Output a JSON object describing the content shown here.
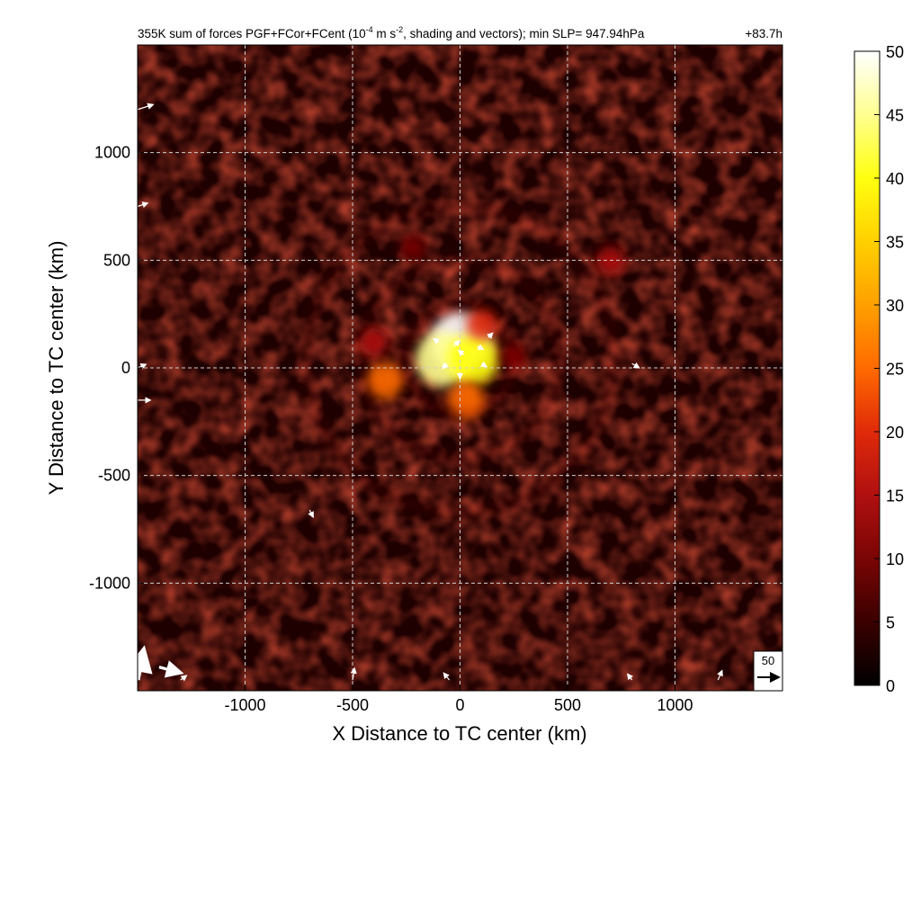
{
  "chart_data": [
    {
      "type": "heatmap",
      "title": "355K sum of forces PGF+FCor+FCent (10",
      "title_exp": "-4",
      "title_mid": " m s",
      "title_exp2": "-2",
      "title_tail": ", shading and vectors); min SLP= 947.94hPa",
      "time_label": "+83.7h",
      "xlabel": "X Distance to TC center (km)",
      "ylabel": "Y Distance to TC center (km)",
      "xlim": [
        -1500,
        1500
      ],
      "ylim": [
        -1500,
        1500
      ],
      "xticks": [
        -1000,
        -500,
        0,
        500,
        1000
      ],
      "yticks": [
        -1000,
        -500,
        0,
        500,
        1000
      ],
      "grid": true,
      "colorbar": {
        "min": 0,
        "max": 50,
        "ticks": [
          0,
          5,
          10,
          15,
          20,
          25,
          30,
          35,
          40,
          45,
          50
        ],
        "colormap": [
          "#000000",
          "#3a0000",
          "#7a0505",
          "#b01010",
          "#e02a0a",
          "#ff6a00",
          "#ffa000",
          "#ffd000",
          "#ffff10",
          "#ffff90",
          "#ffffff"
        ]
      },
      "reference_vector": {
        "value": "50"
      },
      "features": [
        {
          "x": 0,
          "y": 120,
          "value": 50
        },
        {
          "x": -80,
          "y": 40,
          "value": 45
        },
        {
          "x": 60,
          "y": 40,
          "value": 40
        },
        {
          "x": 30,
          "y": -150,
          "value": 25
        },
        {
          "x": -350,
          "y": -60,
          "value": 25
        },
        {
          "x": 100,
          "y": 200,
          "value": 18
        },
        {
          "x": -400,
          "y": 120,
          "value": 15
        },
        {
          "x": 700,
          "y": 500,
          "value": 15
        },
        {
          "x": -220,
          "y": 560,
          "value": 12
        },
        {
          "x": 250,
          "y": 50,
          "value": 12
        }
      ],
      "vectors": [
        {
          "x": -1500,
          "y": -1450,
          "u": 8,
          "v": 40,
          "mag": 60
        },
        {
          "x": -1400,
          "y": -1390,
          "u": 30,
          "v": -8,
          "mag": 40
        },
        {
          "x": -1500,
          "y": 1200,
          "u": 25,
          "v": 8,
          "mag": 15
        },
        {
          "x": -1500,
          "y": -150,
          "u": 20,
          "v": 0,
          "mag": 12
        },
        {
          "x": -1500,
          "y": 750,
          "u": 15,
          "v": 5,
          "mag": 8
        },
        {
          "x": -1500,
          "y": 0,
          "u": 12,
          "v": 5,
          "mag": 6
        },
        {
          "x": -700,
          "y": -660,
          "u": 5,
          "v": -10,
          "mag": 7
        },
        {
          "x": 800,
          "y": 20,
          "u": 10,
          "v": -6,
          "mag": 6
        },
        {
          "x": -500,
          "y": -1450,
          "u": 3,
          "v": 18,
          "mag": 10
        },
        {
          "x": -30,
          "y": 100,
          "u": 8,
          "v": 8,
          "mag": 8
        },
        {
          "x": 20,
          "y": 60,
          "u": -8,
          "v": 6,
          "mag": 8
        },
        {
          "x": 80,
          "y": 100,
          "u": 8,
          "v": -4,
          "mag": 7
        },
        {
          "x": -60,
          "y": 20,
          "u": -6,
          "v": -6,
          "mag": 6
        },
        {
          "x": 100,
          "y": 20,
          "u": 6,
          "v": -4,
          "mag": 6
        },
        {
          "x": 0,
          "y": -20,
          "u": 0,
          "v": -8,
          "mag": 6
        },
        {
          "x": 130,
          "y": 140,
          "u": 6,
          "v": 6,
          "mag": 5
        },
        {
          "x": -100,
          "y": 120,
          "u": -6,
          "v": 4,
          "mag": 5
        },
        {
          "x": 1200,
          "y": -1450,
          "u": 6,
          "v": 14,
          "mag": 8
        },
        {
          "x": -50,
          "y": -1450,
          "u": -8,
          "v": 10,
          "mag": 7
        },
        {
          "x": 800,
          "y": -1450,
          "u": -6,
          "v": 8,
          "mag": 6
        },
        {
          "x": -1300,
          "y": -1450,
          "u": 8,
          "v": 6,
          "mag": 5
        }
      ]
    }
  ]
}
